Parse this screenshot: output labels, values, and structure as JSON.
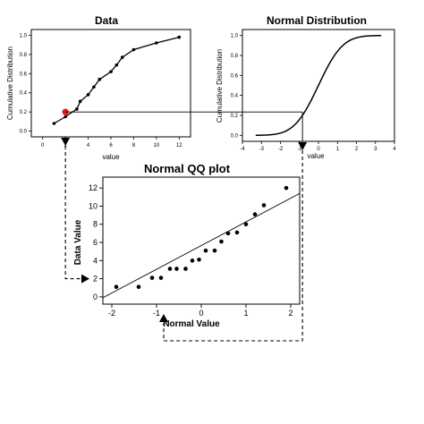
{
  "chart_data": [
    {
      "id": "data",
      "type": "line",
      "title": "Data",
      "xlabel": "value",
      "ylabel": "Cumulative Distribution",
      "xlim": [
        -1,
        13
      ],
      "ylim": [
        -0.06,
        1.06
      ],
      "x_ticks": [
        0,
        2,
        4,
        6,
        8,
        10,
        12
      ],
      "y_ticks": [
        0.0,
        0.2,
        0.4,
        0.6,
        0.8,
        1.0
      ],
      "y_tick_labels": [
        "0.0",
        "0.2",
        "0.4",
        "0.6",
        "0.8",
        "1.0"
      ],
      "grid": false,
      "series": [
        {
          "x": [
            1,
            2,
            3,
            3.3,
            4,
            4.5,
            5,
            6,
            6.5,
            7,
            8,
            10,
            12
          ],
          "y": [
            0.08,
            0.15,
            0.23,
            0.31,
            0.38,
            0.46,
            0.54,
            0.62,
            0.69,
            0.77,
            0.85,
            0.92,
            0.98
          ]
        }
      ],
      "highlight": {
        "x": 2,
        "y": 0.2,
        "color": "#e8141b"
      },
      "accent_color": "#000000"
    },
    {
      "id": "normal",
      "type": "line",
      "title": "Normal Distribution",
      "xlabel": "value",
      "ylabel": "Cumulative Distribution",
      "xlim": [
        -4,
        4
      ],
      "ylim": [
        -0.06,
        1.06
      ],
      "x_ticks": [
        -4,
        -3,
        -2,
        -1,
        0,
        1,
        2,
        3,
        4
      ],
      "y_ticks": [
        0.0,
        0.2,
        0.4,
        0.6,
        0.8,
        1.0
      ],
      "y_tick_labels": [
        "0.0",
        "0.2",
        "0.4",
        "0.6",
        "0.8",
        "1.0"
      ],
      "curve_range": [
        -3.3,
        3.3
      ],
      "grid": false,
      "marker": {
        "x": -0.84,
        "y": 0.2
      }
    },
    {
      "id": "qq",
      "type": "scatter",
      "title": "Normal QQ plot",
      "xlabel": "Normal Value",
      "ylabel": "Data Value",
      "xlim": [
        -2.2,
        2.2
      ],
      "ylim": [
        -0.8,
        13.2
      ],
      "x_ticks": [
        -2,
        -1,
        0,
        1,
        2
      ],
      "x_tick_labels": [
        "-2",
        "-1",
        "0",
        "1",
        "2"
      ],
      "y_ticks": [
        0,
        2,
        4,
        6,
        8,
        10,
        12
      ],
      "grid": false,
      "series": [
        {
          "x": [
            -1.9,
            -1.4,
            -1.1,
            -0.9,
            -0.7,
            -0.55,
            -0.35,
            -0.2,
            -0.05,
            0.1,
            0.3,
            0.45,
            0.6,
            0.8,
            1.0,
            1.2,
            1.4,
            1.9
          ],
          "y": [
            1.1,
            1.1,
            2.1,
            2.1,
            3.1,
            3.1,
            3.1,
            4.0,
            4.1,
            5.1,
            5.1,
            6.1,
            7.0,
            7.1,
            8.0,
            9.1,
            10.1,
            12.0
          ]
        }
      ],
      "fit_line": {
        "x": [
          -2.2,
          2.2
        ],
        "y": [
          -0.1,
          11.4
        ]
      },
      "arrow_points": {
        "x": -0.84,
        "y": 2
      }
    }
  ]
}
